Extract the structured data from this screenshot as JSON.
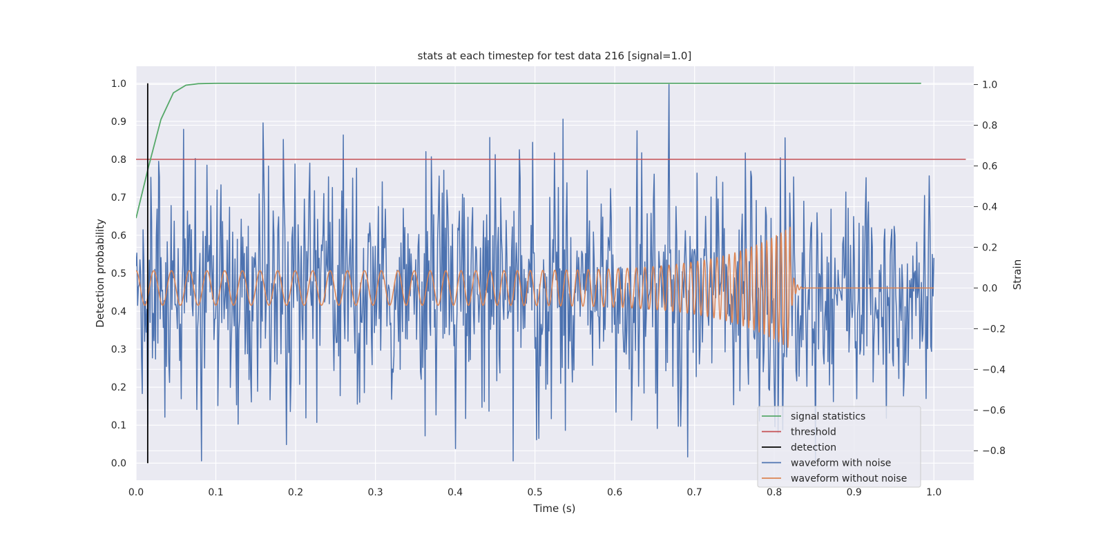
{
  "chart_data": {
    "type": "line",
    "title": "stats at each timestep for test data 216 [signal=1.0]",
    "xlabel": "Time (s)",
    "ylabel_left": "Detection probability",
    "ylabel_right": "Strain",
    "xlim": [
      0.0,
      1.05
    ],
    "ylim_left": [
      -0.045,
      1.045
    ],
    "ylim_right": [
      -0.945,
      1.09
    ],
    "x_ticks": [
      "0.0",
      "0.1",
      "0.2",
      "0.3",
      "0.4",
      "0.5",
      "0.6",
      "0.7",
      "0.8",
      "0.9",
      "1.0"
    ],
    "y_ticks_left": [
      "0.0",
      "0.1",
      "0.2",
      "0.3",
      "0.4",
      "0.5",
      "0.6",
      "0.7",
      "0.8",
      "0.9",
      "1.0"
    ],
    "y_ticks_right": [
      "−0.8",
      "−0.6",
      "−0.4",
      "−0.2",
      "0.0",
      "0.2",
      "0.4",
      "0.6",
      "0.8",
      "1.0"
    ],
    "grid": true,
    "legend_position": "bottom-right",
    "series": [
      {
        "name": "signal statistics",
        "axis": "left",
        "color": "#55a868",
        "x": [
          0.0,
          0.0156,
          0.0312,
          0.0468,
          0.0624,
          0.078,
          0.1,
          0.2,
          0.3,
          0.4,
          0.5,
          0.6,
          0.7,
          0.8,
          0.9,
          0.984
        ],
        "y": [
          0.645,
          0.78,
          0.905,
          0.975,
          0.995,
          0.999,
          1.0,
          1.0,
          1.0,
          1.0,
          1.0,
          1.0,
          1.0,
          1.0,
          1.0,
          1.0
        ]
      },
      {
        "name": "threshold",
        "axis": "left",
        "color": "#c44e52",
        "x": [
          0.0,
          1.04
        ],
        "y": [
          0.8,
          0.8
        ]
      },
      {
        "name": "detection",
        "axis": "left",
        "color": "#000000",
        "x": [
          0.0146,
          0.0146
        ],
        "y": [
          0.0,
          1.0
        ]
      },
      {
        "name": "waveform with noise",
        "axis": "right",
        "color": "#4c72b0",
        "sample_rate_hz": 1024,
        "duration_s": 1.0,
        "y_range": [
          -0.85,
          1.0
        ],
        "noise_std": 0.27,
        "peaks": [
          {
            "x": 0.06,
            "y": 0.78
          },
          {
            "x": 0.185,
            "y": 0.73
          },
          {
            "x": 0.188,
            "y": -0.77
          },
          {
            "x": 0.4,
            "y": -0.79
          },
          {
            "x": 0.443,
            "y": 0.74
          },
          {
            "x": 0.473,
            "y": -0.85
          },
          {
            "x": 0.535,
            "y": 0.83
          },
          {
            "x": 0.538,
            "y": -0.7
          },
          {
            "x": 0.668,
            "y": 1.0
          },
          {
            "x": 0.68,
            "y": -0.68
          },
          {
            "x": 0.808,
            "y": 0.64
          },
          {
            "x": 0.94,
            "y": -0.64
          }
        ]
      },
      {
        "name": "waveform without noise",
        "axis": "right",
        "color": "#dd8452",
        "type": "chirp",
        "t_merger": 0.82,
        "f_start_hz": 45,
        "f_end_hz": 180,
        "amp_start": 0.085,
        "amp_end": 0.3,
        "ringdown_end": 0.84,
        "flat_end": 1.0
      }
    ]
  }
}
